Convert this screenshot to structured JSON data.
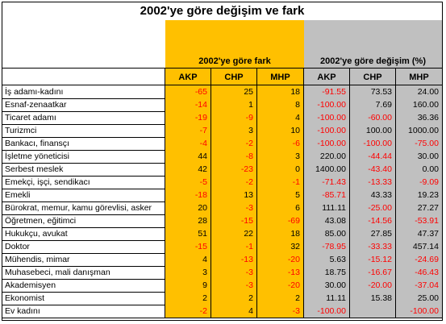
{
  "title": "2002'ye göre değişim ve fark",
  "groups": {
    "fark": "2002'ye göre fark",
    "degisim": "2002'ye göre değişim (%)"
  },
  "columns": [
    "AKP",
    "CHP",
    "MHP",
    "AKP",
    "CHP",
    "MHP"
  ],
  "rows": [
    {
      "label": "İş adamı-kadını",
      "vals": [
        "-65",
        "25",
        "18",
        "-91.55",
        "73.53",
        "24.00"
      ]
    },
    {
      "label": "Esnaf-zenaatkar",
      "vals": [
        "-14",
        "1",
        "8",
        "-100.00",
        "7.69",
        "160.00"
      ]
    },
    {
      "label": "Ticaret adamı",
      "vals": [
        "-19",
        "-9",
        "4",
        "-100.00",
        "-60.00",
        "36.36"
      ]
    },
    {
      "label": "Turizmci",
      "vals": [
        "-7",
        "3",
        "10",
        "-100.00",
        "100.00",
        "1000.00"
      ]
    },
    {
      "label": "Bankacı, finansçı",
      "vals": [
        "-4",
        "-2",
        "-6",
        "-100.00",
        "-100.00",
        "-75.00"
      ]
    },
    {
      "label": "İşletme yöneticisi",
      "vals": [
        "44",
        "-8",
        "3",
        "220.00",
        "-44.44",
        "30.00"
      ]
    },
    {
      "label": "Serbest meslek",
      "vals": [
        "42",
        "-23",
        "0",
        "1400.00",
        "-43.40",
        "0.00"
      ]
    },
    {
      "label": "Emekçi, işçi, sendikacı",
      "vals": [
        "-5",
        "-2",
        "-1",
        "-71.43",
        "-13.33",
        "-9.09"
      ]
    },
    {
      "label": "Emekli",
      "vals": [
        "-18",
        "13",
        "5",
        "-85.71",
        "43.33",
        "19.23"
      ]
    },
    {
      "label": "Bürokrat, memur, kamu görevlisi, asker",
      "vals": [
        "20",
        "-3",
        "6",
        "111.11",
        "-25.00",
        "27.27"
      ]
    },
    {
      "label": "Öğretmen, eğitimci",
      "vals": [
        "28",
        "-15",
        "-69",
        "43.08",
        "-14.56",
        "-53.91"
      ]
    },
    {
      "label": "Hukukçu, avukat",
      "vals": [
        "51",
        "22",
        "18",
        "85.00",
        "27.85",
        "47.37"
      ]
    },
    {
      "label": "Doktor",
      "vals": [
        "-15",
        "-1",
        "32",
        "-78.95",
        "-33.33",
        "457.14"
      ]
    },
    {
      "label": "Mühendis, mimar",
      "vals": [
        "4",
        "-13",
        "-20",
        "5.63",
        "-15.12",
        "-24.69"
      ]
    },
    {
      "label": "Muhasebeci, mali danışman",
      "vals": [
        "3",
        "-3",
        "-13",
        "18.75",
        "-16.67",
        "-46.43"
      ]
    },
    {
      "label": "Akademisyen",
      "vals": [
        "9",
        "-3",
        "-20",
        "30.00",
        "-20.00",
        "-37.04"
      ]
    },
    {
      "label": "Ekonomist",
      "vals": [
        "2",
        "2",
        "2",
        "11.11",
        "15.38",
        "25.00"
      ]
    },
    {
      "label": "Ev kadını",
      "vals": [
        "-2",
        "4",
        "-3",
        "-100.00",
        "",
        "-100.00"
      ]
    }
  ],
  "colors": {
    "fark_fill": "#ffc000",
    "degisim_fill": "#c0c0c0",
    "negative_text": "#ff0000"
  }
}
